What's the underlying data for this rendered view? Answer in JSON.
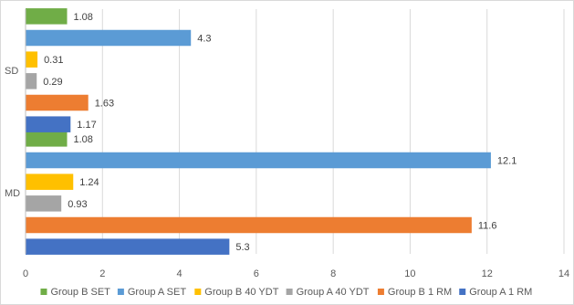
{
  "chart_data": {
    "type": "bar",
    "orientation": "horizontal",
    "categories": [
      "MD",
      "SD"
    ],
    "series": [
      {
        "name": "Group A 1 RM",
        "values": [
          5.3,
          1.17
        ],
        "color": "#4472C4"
      },
      {
        "name": "Group B 1 RM",
        "values": [
          11.6,
          1.63
        ],
        "color": "#ED7D31"
      },
      {
        "name": "Group A 40 YDT",
        "values": [
          0.93,
          0.29
        ],
        "color": "#A5A5A5"
      },
      {
        "name": "Group B 40 YDT",
        "values": [
          1.24,
          0.31
        ],
        "color": "#FFC000"
      },
      {
        "name": "Group A SET",
        "values": [
          12.1,
          4.3
        ],
        "color": "#5B9BD5"
      },
      {
        "name": "Group B SET",
        "values": [
          1.08,
          1.08
        ],
        "color": "#70AD47"
      }
    ],
    "data_labels": [
      [
        "5.3",
        "1.17"
      ],
      [
        "11.6",
        "1.63"
      ],
      [
        "0.93",
        "0.29"
      ],
      [
        "1.24",
        "0.31"
      ],
      [
        "12.1",
        "4.3"
      ],
      [
        "1.08",
        "1.08"
      ]
    ],
    "xlim": [
      0,
      14
    ],
    "x_ticks": [
      0,
      2,
      4,
      6,
      8,
      10,
      12,
      14
    ],
    "x_tick_labels": [
      "0",
      "2",
      "4",
      "6",
      "8",
      "10",
      "12",
      "14"
    ],
    "grid": true,
    "legend_position": "bottom",
    "legend_order": [
      "Group B SET",
      "Group A SET",
      "Group B 40 YDT",
      "Group A 40 YDT",
      "Group B 1 RM",
      "Group A 1 RM"
    ],
    "title": "",
    "xlabel": "",
    "ylabel": ""
  }
}
